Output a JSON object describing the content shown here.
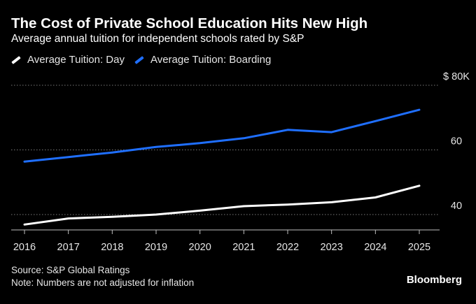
{
  "chart_data": {
    "type": "line",
    "title": "The Cost of Private School Education Hits New High",
    "subtitle": "Average annual tuition for independent schools rated by S&P",
    "x": [
      "2016",
      "2017",
      "2018",
      "2019",
      "2020",
      "2021",
      "2022",
      "2023",
      "2024",
      "2025"
    ],
    "series": [
      {
        "name": "Average Tuition: Day",
        "color": "#ffffff",
        "values": [
          36.9,
          38.8,
          39.3,
          40.0,
          41.2,
          42.6,
          43.1,
          43.8,
          45.3,
          48.9
        ]
      },
      {
        "name": "Average Tuition: Boarding",
        "color": "#1f6fff",
        "values": [
          56.4,
          57.8,
          59.2,
          60.9,
          62.1,
          63.6,
          66.2,
          65.5,
          68.9,
          72.4
        ]
      }
    ],
    "y_ticks": [
      {
        "value": 40,
        "label": "40"
      },
      {
        "value": 60,
        "label": "60"
      },
      {
        "value": 80,
        "label": "$ 80K"
      }
    ],
    "ylim": [
      35,
      82
    ],
    "grid": true,
    "legend_position": "top-left"
  },
  "footer": {
    "source": "Source: S&P Global Ratings",
    "note": "Note: Numbers are not adjusted for inflation"
  },
  "brand": "Bloomberg"
}
